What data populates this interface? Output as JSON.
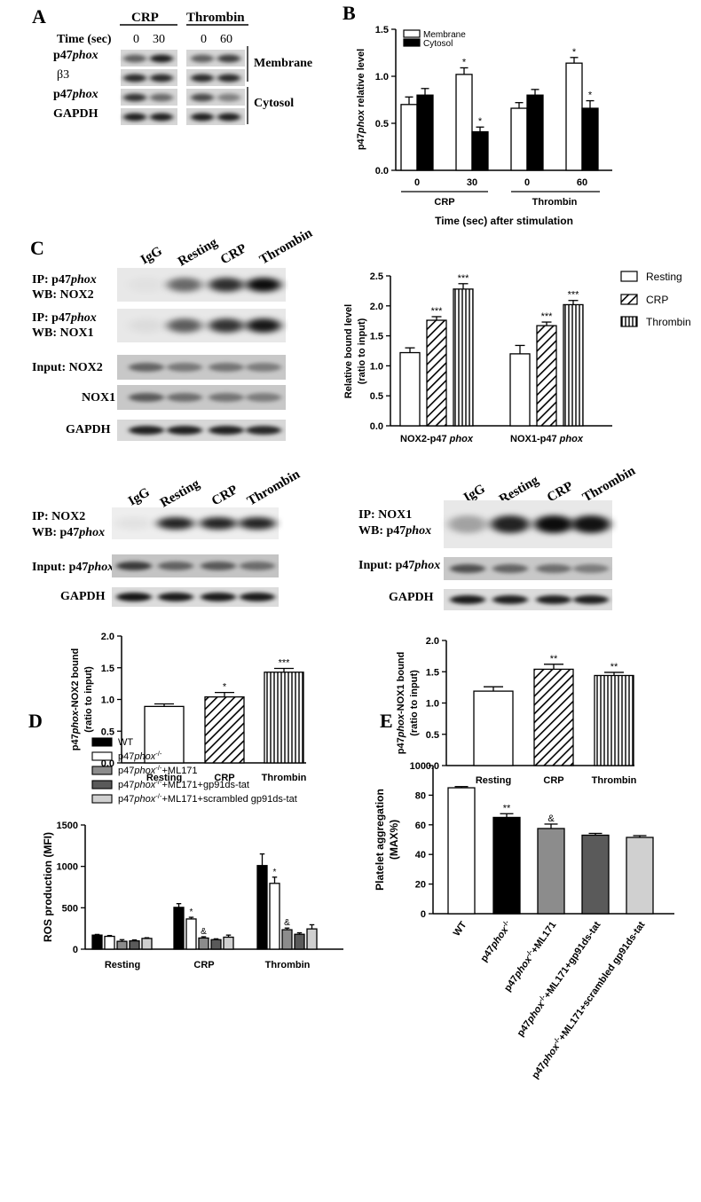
{
  "panels": {
    "A": {
      "letter": "A",
      "group_labels": [
        "CRP",
        "Thrombin"
      ],
      "time_label": "Time (sec)",
      "times_crp": [
        "0",
        "30"
      ],
      "times_thrombin": [
        "0",
        "60"
      ],
      "row_labels": [
        {
          "pre": "p47",
          "it": "phox"
        },
        {
          "pre": "β3",
          "it": ""
        },
        {
          "pre": "p47",
          "it": "phox"
        },
        {
          "pre": "GAPDH",
          "it": ""
        }
      ],
      "fraction_labels": [
        "Membrane",
        "Cytosol"
      ]
    },
    "B": {
      "letter": "B"
    },
    "C": {
      "letter": "C",
      "blot1": {
        "lanes": [
          "IgG",
          "Resting",
          "CRP",
          "Thrombin"
        ],
        "rows": [
          {
            "l1": "IP: p47",
            "l1it": "phox",
            "l2": "WB: NOX2"
          },
          {
            "l1": "IP: p47",
            "l1it": "phox",
            "l2": "WB: NOX1"
          },
          {
            "l1": "Input:   NOX2",
            "l1it": "",
            "l2": ""
          },
          {
            "l1": "NOX1",
            "l1it": "",
            "l2": ""
          },
          {
            "l1": "GAPDH",
            "l1it": "",
            "l2": ""
          }
        ]
      },
      "blot2": {
        "lanes": [
          "IgG",
          "Resting",
          "CRP",
          "Thrombin"
        ],
        "ip": "IP: NOX2",
        "wb_pre": "WB: p47",
        "wb_it": "phox",
        "input_pre": "Input:  p47",
        "input_it": "phox",
        "gapdh": "GAPDH"
      },
      "blot3": {
        "lanes": [
          "IgG",
          "Resting",
          "CRP",
          "Thrombin"
        ],
        "ip": "IP: NOX1",
        "wb_pre": "WB: p47",
        "wb_it": "phox",
        "input_pre": "Input:  p47",
        "input_it": "phox",
        "gapdh": "GAPDH"
      }
    },
    "D": {
      "letter": "D"
    },
    "E": {
      "letter": "E"
    }
  },
  "chart_data": [
    {
      "id": "B",
      "type": "bar",
      "group_labels": [
        "CRP",
        "Thrombin"
      ],
      "categories": [
        "0",
        "30",
        "0",
        "60"
      ],
      "series": [
        {
          "name": "Membrane",
          "values": [
            0.7,
            1.02,
            0.66,
            1.14
          ],
          "errors": [
            0.08,
            0.07,
            0.06,
            0.06
          ],
          "marks": [
            "",
            "*",
            "",
            "*"
          ],
          "fill": "#ffffff"
        },
        {
          "name": "Cytosol",
          "values": [
            0.8,
            0.41,
            0.8,
            0.66
          ],
          "errors": [
            0.07,
            0.05,
            0.06,
            0.08
          ],
          "marks": [
            "",
            "*",
            "",
            "*"
          ],
          "fill": "#000000"
        }
      ],
      "ylabel": {
        "pre": "p47",
        "it": "phox",
        "post": " relative level"
      },
      "xlabel": "Time (sec) after stimulation",
      "ylim": [
        0,
        1.5
      ],
      "yticks": [
        "0.0",
        "0.5",
        "1.0",
        "1.5"
      ],
      "legend_position": "top-left"
    },
    {
      "id": "C1",
      "type": "bar",
      "categories": [
        {
          "pre": "NOX2-p47 ",
          "it": "phox"
        },
        {
          "pre": "NOX1-p47 ",
          "it": "phox"
        }
      ],
      "series": [
        {
          "name": "Resting",
          "values": [
            1.22,
            1.2
          ],
          "errors": [
            0.08,
            0.14
          ],
          "marks": [
            "",
            ""
          ],
          "pattern": "open"
        },
        {
          "name": "CRP",
          "values": [
            1.76,
            1.67
          ],
          "errors": [
            0.06,
            0.06
          ],
          "marks": [
            "***",
            "***"
          ],
          "pattern": "diag"
        },
        {
          "name": "Thrombin",
          "values": [
            2.28,
            2.02
          ],
          "errors": [
            0.09,
            0.07
          ],
          "marks": [
            "***",
            "***"
          ],
          "pattern": "vert"
        }
      ],
      "ylabel": [
        "Relative bound level",
        "(ratio to input)"
      ],
      "ylim": [
        0,
        2.5
      ],
      "yticks": [
        "0.0",
        "0.5",
        "1.0",
        "1.5",
        "2.0",
        "2.5"
      ],
      "legend_position": "right"
    },
    {
      "id": "C2",
      "type": "bar",
      "categories": [
        "Resting",
        "CRP",
        "Thrombin"
      ],
      "values": [
        0.89,
        1.04,
        1.43
      ],
      "errors": [
        0.04,
        0.07,
        0.06
      ],
      "marks": [
        "",
        "*",
        "***"
      ],
      "patterns": [
        "open",
        "diag",
        "vert"
      ],
      "ylabel": {
        "pre": "p47",
        "it": "phox",
        "post": "-NOX2 bound",
        "line2": "(ratio to input)"
      },
      "ylim": [
        0,
        2.0
      ],
      "yticks": [
        "0.0",
        "0.5",
        "1.0",
        "1.5",
        "2.0"
      ]
    },
    {
      "id": "C3",
      "type": "bar",
      "categories": [
        "Resting",
        "CRP",
        "Thrombin"
      ],
      "values": [
        1.19,
        1.54,
        1.44
      ],
      "errors": [
        0.07,
        0.08,
        0.05
      ],
      "marks": [
        "",
        "**",
        "**"
      ],
      "patterns": [
        "open",
        "diag",
        "vert"
      ],
      "ylabel": {
        "pre": "p47",
        "it": "phox",
        "post": "-NOX1 bound",
        "line2": "(ratio to input)"
      },
      "ylim": [
        0,
        2.0
      ],
      "yticks": [
        "0.0",
        "0.5",
        "1.0",
        "1.5",
        "2.0"
      ]
    },
    {
      "id": "D",
      "type": "bar",
      "categories": [
        "Resting",
        "CRP",
        "Thrombin"
      ],
      "series": [
        {
          "name": "WT",
          "values": [
            170,
            505,
            1010
          ],
          "errors": [
            8,
            45,
            140
          ],
          "marks": [
            "",
            "",
            ""
          ],
          "fill": "#000000"
        },
        {
          "name": "p47phox-/-",
          "values": [
            155,
            365,
            795
          ],
          "errors": [
            10,
            20,
            75
          ],
          "marks": [
            "",
            "*",
            "*"
          ],
          "fill": "#ffffff"
        },
        {
          "name": "p47phox-/-+ML171",
          "values": [
            95,
            135,
            235
          ],
          "errors": [
            20,
            15,
            20
          ],
          "marks": [
            "",
            "&",
            "&"
          ],
          "fill": "#8c8c8c"
        },
        {
          "name": "p47phox-/-+ML171+gp91ds-tat",
          "values": [
            100,
            115,
            180
          ],
          "errors": [
            12,
            10,
            18
          ],
          "marks": [
            "",
            "",
            ""
          ],
          "fill": "#5a5a5a"
        },
        {
          "name": "p47phox-/-+ML171+scrambled gp91ds-tat",
          "values": [
            130,
            145,
            245
          ],
          "errors": [
            8,
            25,
            50
          ],
          "marks": [
            "",
            "",
            ""
          ],
          "fill": "#d0d0d0"
        }
      ],
      "legend": [
        {
          "pre": "WT",
          "sup": "",
          "post": ""
        },
        {
          "pre": "p47",
          "it": "phox",
          "sup": "-/-",
          "post": ""
        },
        {
          "pre": "p47",
          "it": "phox",
          "sup": "-/-",
          "post": "+ML171"
        },
        {
          "pre": "p47",
          "it": "phox",
          "sup": "-/-",
          "post": "+ML171+gp91ds-tat"
        },
        {
          "pre": "p47",
          "it": "phox",
          "sup": "-/-",
          "post": "+ML171+scrambled gp91ds-tat"
        }
      ],
      "ylabel": "ROS production (MFI)",
      "ylim": [
        0,
        1500
      ],
      "yticks": [
        "0",
        "500",
        "1000",
        "1500"
      ],
      "legend_position": "top"
    },
    {
      "id": "E",
      "type": "bar",
      "categories": [
        {
          "pre": "WT",
          "it": "",
          "sup": "",
          "post": ""
        },
        {
          "pre": "p47",
          "it": "phox",
          "sup": "-/-",
          "post": ""
        },
        {
          "pre": "p47",
          "it": "phox",
          "sup": "-/-",
          "post": "+ML171"
        },
        {
          "pre": "p47",
          "it": "phox",
          "sup": "-/-",
          "post": "+ML171+gp91ds-tat"
        },
        {
          "pre": "p47",
          "it": "phox",
          "sup": "-/-",
          "post": "+ML171+scrambled gp91ds-tat"
        }
      ],
      "values": [
        85,
        65,
        57.5,
        53,
        51.5
      ],
      "errors": [
        0.8,
        2.5,
        3.0,
        1.2,
        1.2
      ],
      "marks": [
        "",
        "**",
        "&",
        "",
        ""
      ],
      "fills": [
        "#ffffff",
        "#000000",
        "#8c8c8c",
        "#5a5a5a",
        "#d0d0d0"
      ],
      "ylabel": [
        "Platelet aggregation",
        "(MAX%)"
      ],
      "ylim": [
        0,
        100
      ],
      "yticks": [
        "0",
        "20",
        "40",
        "60",
        "80",
        "100"
      ]
    }
  ]
}
